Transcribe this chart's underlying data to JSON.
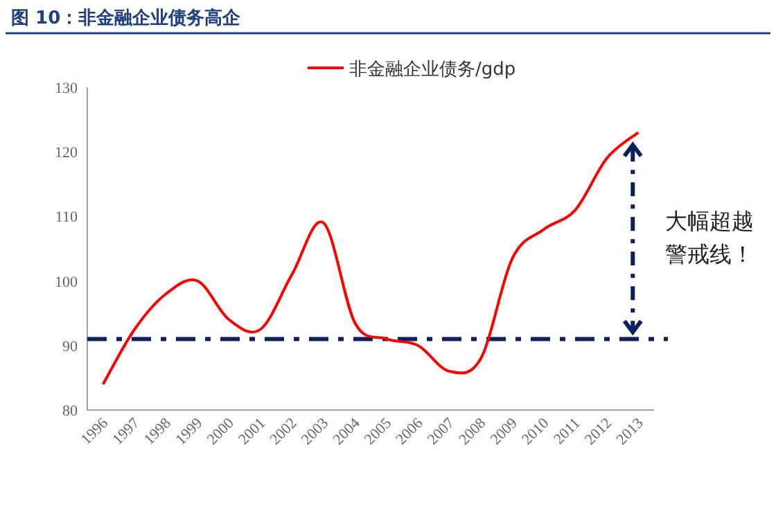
{
  "chart_data": {
    "type": "line",
    "title": "图 10：非金融企业债务高企",
    "categories": [
      "1996",
      "1997",
      "1998",
      "1999",
      "2000",
      "2001",
      "2002",
      "2003",
      "2004",
      "2005",
      "2006",
      "2007",
      "2008",
      "2009",
      "2010",
      "2011",
      "2012",
      "2013"
    ],
    "series": [
      {
        "name": "非金融企业债务/gdp",
        "color": "#ff0000",
        "values": [
          84,
          92.5,
          98,
          100,
          94,
          92.5,
          101,
          109,
          93.5,
          91,
          90,
          86,
          88,
          103.5,
          108,
          111,
          119,
          123
        ]
      }
    ],
    "ylim": [
      80,
      130
    ],
    "yticks": [
      80,
      90,
      100,
      110,
      120,
      130
    ],
    "ref_lines": [
      {
        "axis": "y",
        "value": 91,
        "color": "#0d1f5c",
        "line_style": "dashdot"
      }
    ],
    "annotations": [
      "大幅超越",
      "警戒线！"
    ],
    "legend": "top",
    "grid": false,
    "marker": "none",
    "line_style": "solid"
  }
}
